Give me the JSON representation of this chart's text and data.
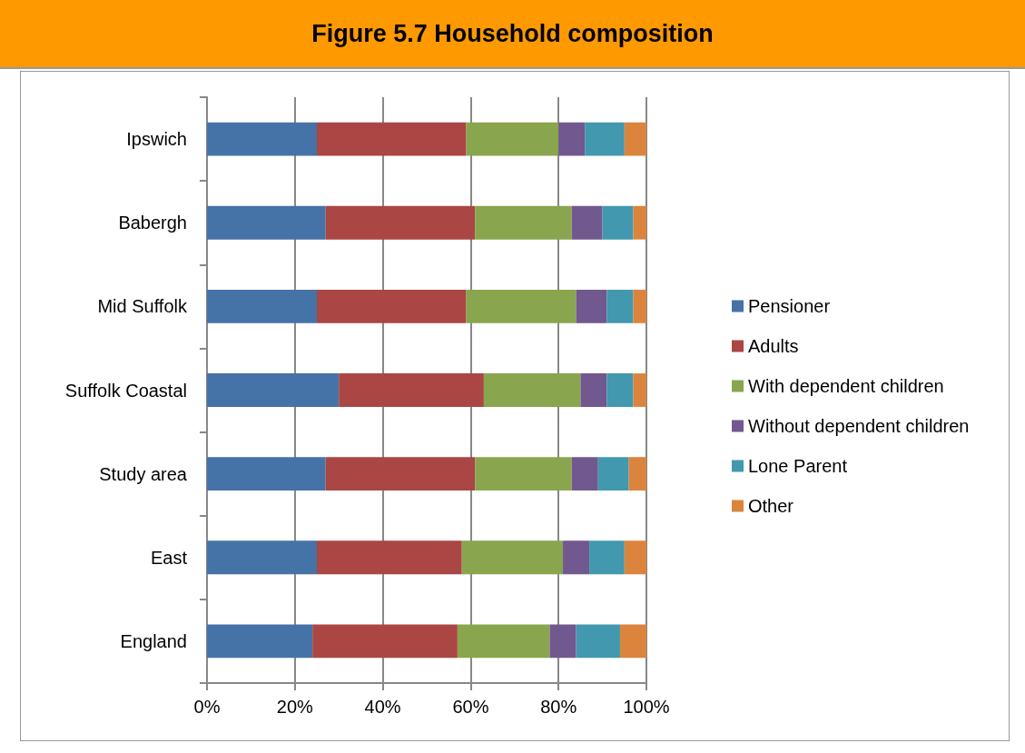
{
  "chart_data": {
    "type": "bar",
    "orientation": "horizontal",
    "stacked": true,
    "title": "Figure 5.7 Household composition",
    "categories": [
      "Ipswich",
      "Babergh",
      "Mid Suffolk",
      "Suffolk Coastal",
      "Study area",
      "East",
      "England"
    ],
    "series": [
      {
        "name": "Pensioner",
        "color": "#4572a7",
        "values": [
          25,
          27,
          25,
          30,
          27,
          25,
          24
        ]
      },
      {
        "name": "Adults",
        "color": "#aa4643",
        "values": [
          34,
          34,
          34,
          33,
          34,
          33,
          33
        ]
      },
      {
        "name": "With dependent children",
        "color": "#89a54e",
        "values": [
          21,
          22,
          25,
          22,
          22,
          23,
          21
        ]
      },
      {
        "name": "Without dependent children",
        "color": "#71588f",
        "values": [
          6,
          7,
          7,
          6,
          6,
          6,
          6
        ]
      },
      {
        "name": "Lone Parent",
        "color": "#4198af",
        "values": [
          9,
          7,
          6,
          6,
          7,
          8,
          10
        ]
      },
      {
        "name": "Other",
        "color": "#db843d",
        "values": [
          5,
          3,
          3,
          3,
          4,
          5,
          6
        ]
      }
    ],
    "xlim": [
      0,
      100
    ],
    "xticks": [
      {
        "value": 0,
        "label": "0%"
      },
      {
        "value": 20,
        "label": "20%"
      },
      {
        "value": 40,
        "label": "40%"
      },
      {
        "value": 60,
        "label": "60%"
      },
      {
        "value": 80,
        "label": "80%"
      },
      {
        "value": 100,
        "label": "100%"
      }
    ],
    "grid": "x",
    "legend": "right"
  }
}
